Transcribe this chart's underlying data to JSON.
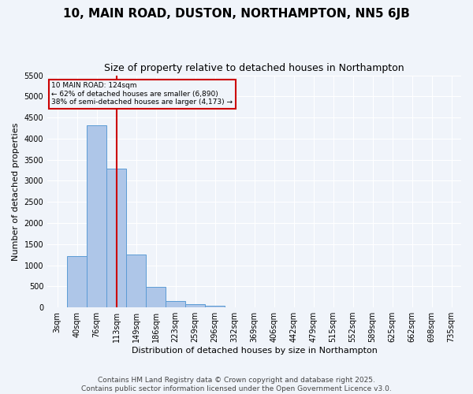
{
  "title": "10, MAIN ROAD, DUSTON, NORTHAMPTON, NN5 6JB",
  "subtitle": "Size of property relative to detached houses in Northampton",
  "xlabel": "Distribution of detached houses by size in Northampton",
  "ylabel": "Number of detached properties",
  "categories": [
    "3sqm",
    "40sqm",
    "76sqm",
    "113sqm",
    "149sqm",
    "186sqm",
    "223sqm",
    "259sqm",
    "296sqm",
    "332sqm",
    "369sqm",
    "406sqm",
    "442sqm",
    "479sqm",
    "515sqm",
    "552sqm",
    "589sqm",
    "625sqm",
    "662sqm",
    "698sqm",
    "735sqm"
  ],
  "values": [
    0,
    1220,
    4320,
    3280,
    1250,
    490,
    160,
    75,
    35,
    10,
    5,
    0,
    0,
    0,
    0,
    0,
    0,
    0,
    0,
    0,
    0
  ],
  "bar_color": "#aec6e8",
  "bar_edge_color": "#5b9bd5",
  "vline_x_index": 3,
  "vline_color": "#cc0000",
  "annotation_line1": "10 MAIN ROAD: 124sqm",
  "annotation_line2": "← 62% of detached houses are smaller (6,890)",
  "annotation_line3": "38% of semi-detached houses are larger (4,173) →",
  "annotation_box_color": "#cc0000",
  "ylim": [
    0,
    5500
  ],
  "yticks": [
    0,
    500,
    1000,
    1500,
    2000,
    2500,
    3000,
    3500,
    4000,
    4500,
    5000,
    5500
  ],
  "background_color": "#f0f4fa",
  "grid_color": "#ffffff",
  "title_fontsize": 11,
  "subtitle_fontsize": 9,
  "tick_fontsize": 7,
  "label_fontsize": 8,
  "footer_fontsize": 6.5,
  "footer_line1": "Contains HM Land Registry data © Crown copyright and database right 2025.",
  "footer_line2": "Contains public sector information licensed under the Open Government Licence v3.0."
}
